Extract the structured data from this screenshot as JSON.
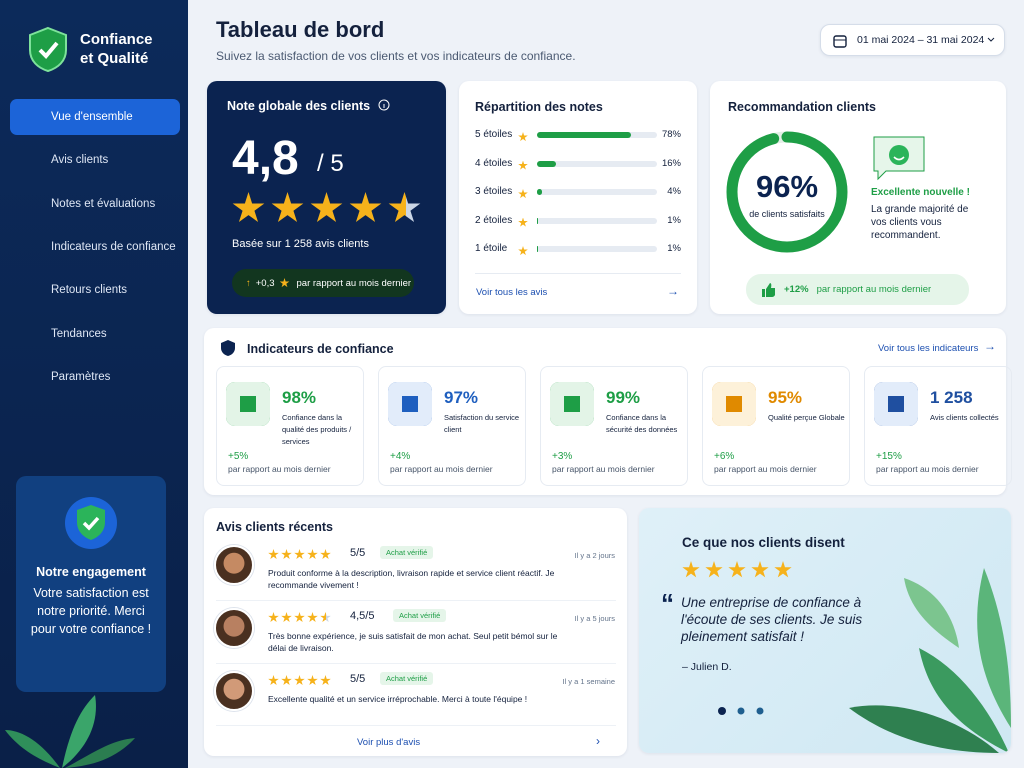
{
  "sidebar": {
    "brand": [
      "Confiance",
      "et Qualité"
    ],
    "nav": [
      "Vue d'ensemble",
      "Avis clients",
      "Notes et évaluations",
      "Indicateurs de confiance",
      "Retours clients",
      "Tendances",
      "Paramètres"
    ],
    "engagement": {
      "title": "Notre engagement",
      "text": "Votre satisfaction est notre priorité. Merci pour votre confiance !"
    }
  },
  "header": {
    "title": "Tableau de bord",
    "subtitle": "Suivez la satisfaction de vos clients et vos indicateurs de confiance.",
    "date_range": "01 mai 2024 – 31 mai 2024"
  },
  "overall": {
    "title": "Note globale des clients",
    "score": "4,8",
    "scale": "/ 5",
    "basis": "Basée sur 1 258 avis clients",
    "change": "+0,3",
    "change_note": "par rapport au mois dernier"
  },
  "distribution": {
    "title": "Répartition des notes",
    "rows": [
      {
        "label": "5 étoiles",
        "value": 78,
        "value_label": "78%"
      },
      {
        "label": "4 étoiles",
        "value": 16,
        "value_label": "16%"
      },
      {
        "label": "3 étoiles",
        "value": 4,
        "value_label": "4%"
      },
      {
        "label": "2 étoiles",
        "value": 1,
        "value_label": "1%"
      },
      {
        "label": "1 étoile",
        "value": 1,
        "value_label": "1%"
      }
    ],
    "link": "Voir tous les avis"
  },
  "recommendation": {
    "title": "Recommandation clients",
    "value": 96,
    "value_label": "96%",
    "caption": "de clients satisfaits",
    "headline": "Excellente nouvelle !",
    "text": "La grande majorité de vos clients vous recommandent.",
    "change": "+12%",
    "change_note": "par rapport au mois dernier"
  },
  "indicators": {
    "title": "Indicateurs de confiance",
    "link": "Voir tous les indicateurs",
    "items": [
      {
        "value": "98%",
        "label": "Confiance dans la qualité des produits / services",
        "change": "+5%",
        "note": "par rapport au mois dernier"
      },
      {
        "value": "97%",
        "label": "Satisfaction du service client",
        "change": "+4%",
        "note": "par rapport au mois dernier"
      },
      {
        "value": "99%",
        "label": "Confiance dans la sécurité des données",
        "change": "+3%",
        "note": "par rapport au mois dernier"
      },
      {
        "value": "95%",
        "label": "Qualité perçue Globale",
        "change": "+6%",
        "note": "par rapport au mois dernier"
      },
      {
        "value": "1 258",
        "label": "Avis clients collectés",
        "change": "+15%",
        "note": "par rapport au mois dernier"
      }
    ]
  },
  "reviews": {
    "title": "Avis clients récents",
    "items": [
      {
        "rating": "5/5",
        "badge": "Achat vérifié",
        "time": "Il y a 2 jours",
        "text": "Produit conforme à la description, livraison rapide et service client réactif. Je recommande vivement !"
      },
      {
        "rating": "4,5/5",
        "badge": "Achat vérifié",
        "time": "Il y a 5 jours",
        "text": "Très bonne expérience, je suis satisfait de mon achat. Seul petit bémol sur le délai de livraison."
      },
      {
        "rating": "5/5",
        "badge": "Achat vérifié",
        "time": "Il y a 1 semaine",
        "text": "Excellente qualité et un service irréprochable. Merci à toute l'équipe !"
      }
    ],
    "link": "Voir plus d'avis"
  },
  "testimonial": {
    "title": "Ce que nos clients disent",
    "quote": "Une entreprise de confiance à l'écoute de ses clients. Je suis pleinement satisfait !",
    "author": "– Julien D."
  }
}
